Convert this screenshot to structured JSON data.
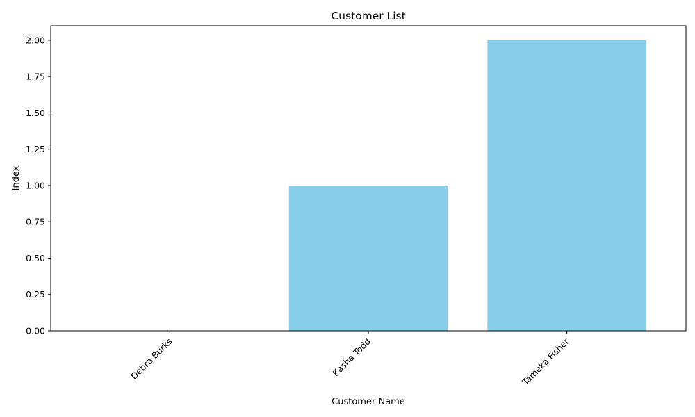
{
  "chart_data": {
    "type": "bar",
    "title": "Customer List",
    "xlabel": "Customer Name",
    "ylabel": "Index",
    "categories": [
      "Debra Burks",
      "Kasha Todd",
      "Tameka Fisher"
    ],
    "values": [
      0,
      1,
      2
    ],
    "ylim": [
      0,
      2.1
    ],
    "yticks": [
      "0.00",
      "0.25",
      "0.50",
      "0.75",
      "1.00",
      "1.25",
      "1.50",
      "1.75",
      "2.00"
    ],
    "bar_color": "#87CEEB",
    "grid": false,
    "legend": false,
    "xtick_rotation": 45
  }
}
